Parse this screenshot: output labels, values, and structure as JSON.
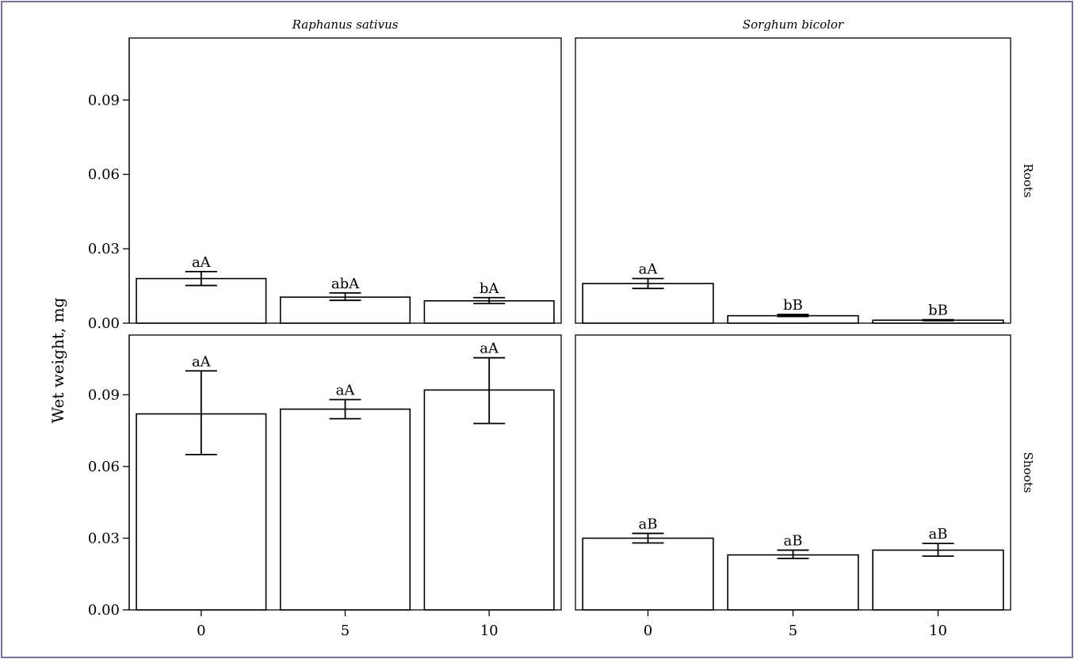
{
  "chart_data": {
    "type": "bar",
    "ylabel": "Wet weight, mg",
    "xlabel": "",
    "ylim": [
      0,
      0.115
    ],
    "yticks": [
      "0.00",
      "0.03",
      "0.06",
      "0.09"
    ],
    "columns": [
      "Raphanus sativus",
      "Sorghum bicolor"
    ],
    "rows": [
      "Roots",
      "Shoots"
    ],
    "categories": [
      "0",
      "5",
      "10"
    ],
    "panels": [
      {
        "column": "Raphanus sativus",
        "row": "Roots",
        "values": [
          0.018,
          0.0105,
          0.009
        ],
        "err_low": [
          0.0152,
          0.0092,
          0.0079
        ],
        "err_high": [
          0.0208,
          0.0122,
          0.0103
        ],
        "labels": [
          "aA",
          "abA",
          "bA"
        ]
      },
      {
        "column": "Sorghum bicolor",
        "row": "Roots",
        "values": [
          0.016,
          0.003,
          0.0012
        ],
        "err_low": [
          0.014,
          0.0027,
          0.001
        ],
        "err_high": [
          0.018,
          0.0035,
          0.0014
        ],
        "labels": [
          "aA",
          "bB",
          "bB"
        ]
      },
      {
        "column": "Raphanus sativus",
        "row": "Shoots",
        "values": [
          0.082,
          0.084,
          0.092
        ],
        "err_low": [
          0.065,
          0.08,
          0.078
        ],
        "err_high": [
          0.1,
          0.088,
          0.1055
        ],
        "labels": [
          "aA",
          "aA",
          "aA"
        ]
      },
      {
        "column": "Sorghum bicolor",
        "row": "Shoots",
        "values": [
          0.03,
          0.023,
          0.025
        ],
        "err_low": [
          0.028,
          0.0215,
          0.0225
        ],
        "err_high": [
          0.032,
          0.025,
          0.0278
        ],
        "labels": [
          "aB",
          "aB",
          "aB"
        ]
      }
    ]
  }
}
